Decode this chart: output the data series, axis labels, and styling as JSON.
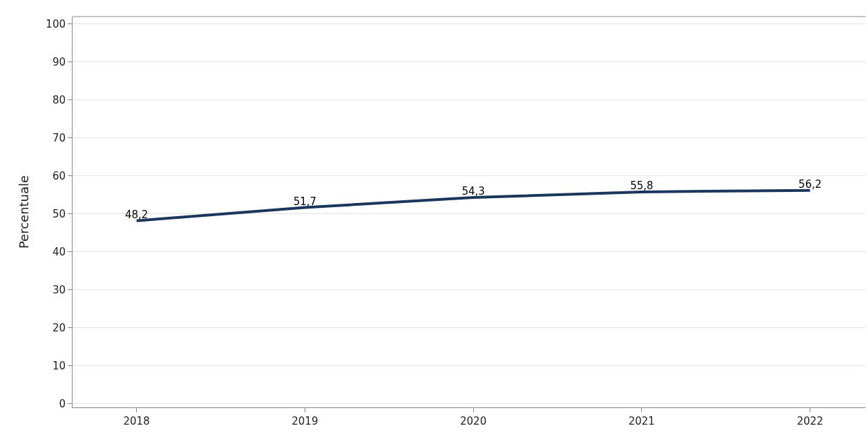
{
  "chart_data": {
    "type": "line",
    "ylabel": "Percentuale",
    "categories": [
      "2018",
      "2019",
      "2020",
      "2021",
      "2022"
    ],
    "series": [
      {
        "color": "#1b365d",
        "values": [
          48.2,
          51.7,
          54.3,
          55.8,
          56.2
        ],
        "value_labels": [
          "48,2",
          "51,7",
          "54,3",
          "55,8",
          "56,2"
        ]
      }
    ],
    "ylim": [
      -1,
      102
    ],
    "yticks": [
      0,
      10,
      20,
      30,
      40,
      50,
      60,
      70,
      80,
      90,
      100
    ],
    "grid": "y",
    "marker": "none",
    "line_style": "solid"
  }
}
